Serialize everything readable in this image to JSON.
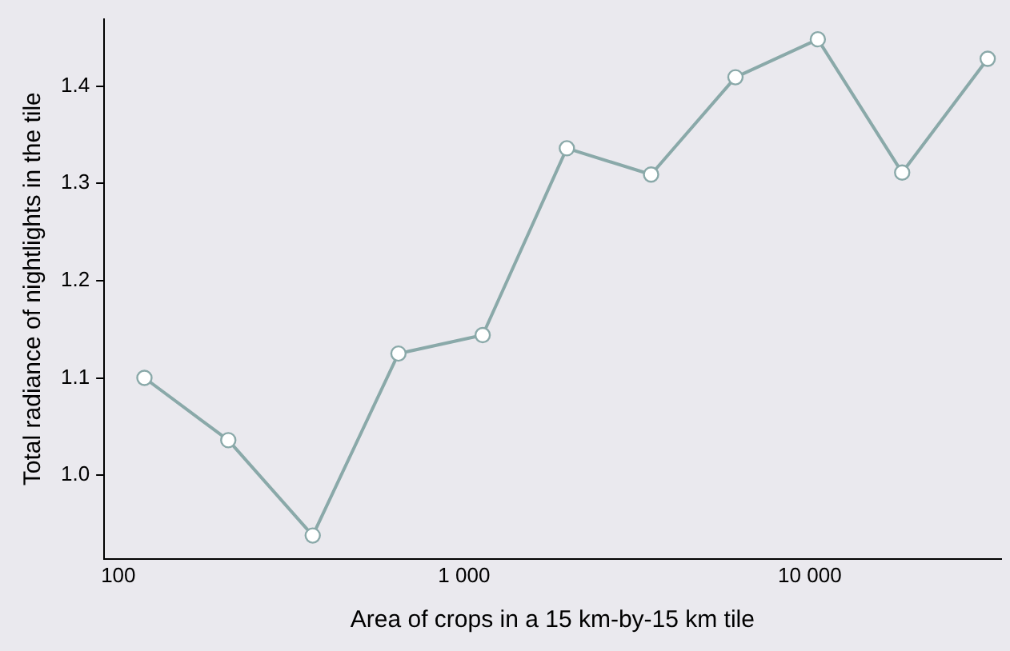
{
  "chart_data": {
    "type": "line",
    "xlabel": "Area of crops in a 15 km-by-15 km tile",
    "ylabel": "Total radiance of nightlights in the tile",
    "x": [
      119,
      208,
      365,
      646,
      1132,
      1983,
      3475,
      6095,
      10550,
      18500,
      32700
    ],
    "series": [
      {
        "color": "#8aa9a9",
        "values": [
          1.1,
          1.036,
          0.938,
          1.125,
          1.144,
          1.336,
          1.309,
          1.409,
          1.448,
          1.311,
          1.428
        ]
      }
    ],
    "log": "x",
    "xlim": [
      91,
      35700
    ],
    "ylim": [
      0.914,
      1.469
    ],
    "xticks": [
      100,
      {
        "value": 1000,
        "label": "1 000"
      },
      {
        "value": 10000,
        "label": "10 000"
      }
    ],
    "yticks": [
      {
        "value": 1.0,
        "label": "1.0"
      },
      1.1,
      1.2,
      1.3,
      1.4
    ],
    "grid": false,
    "legend": false,
    "marker": "circle",
    "line_style": "solid"
  }
}
